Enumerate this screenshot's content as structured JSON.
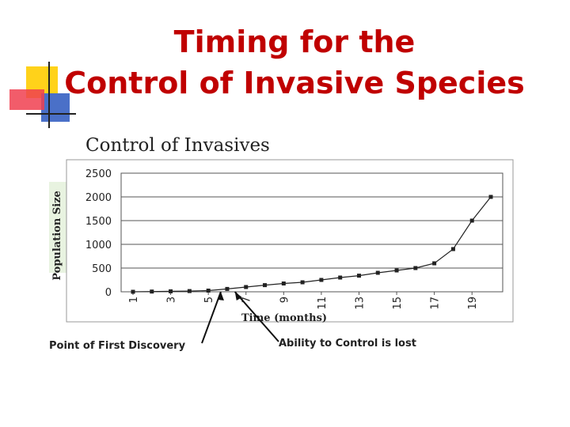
{
  "slide": {
    "title_line1": "Timing for the",
    "title_line2": "Control of Invasive Species"
  },
  "colors": {
    "title": "#c00000",
    "series": "#222222",
    "deco_yellow": "#ffd21a",
    "deco_blue": "#4a70c8",
    "deco_red": "#f04050"
  },
  "chart_data": {
    "type": "line",
    "title": "Control of Invasives",
    "xlabel": "Time (months)",
    "ylabel": "Population Size",
    "ylim": [
      0,
      2500
    ],
    "yticks": [
      0,
      500,
      1000,
      1500,
      2000,
      2500
    ],
    "xticks": [
      1,
      3,
      5,
      7,
      9,
      11,
      13,
      15,
      17,
      19
    ],
    "xlim": [
      1,
      20
    ],
    "grid": "horizontal",
    "series": [
      {
        "x": [
          1,
          2,
          3,
          4,
          5,
          6,
          7,
          8,
          9,
          10,
          11,
          12,
          13,
          14,
          15,
          16,
          17,
          18,
          19,
          20
        ],
        "values": [
          0,
          5,
          10,
          15,
          25,
          60,
          100,
          140,
          175,
          200,
          250,
          300,
          340,
          400,
          450,
          500,
          600,
          900,
          1500,
          2000
        ]
      }
    ],
    "annotations": [
      {
        "text": "Point of First Discovery",
        "x": 6
      },
      {
        "text": "Ability to Control is lost",
        "x": 7
      }
    ]
  }
}
